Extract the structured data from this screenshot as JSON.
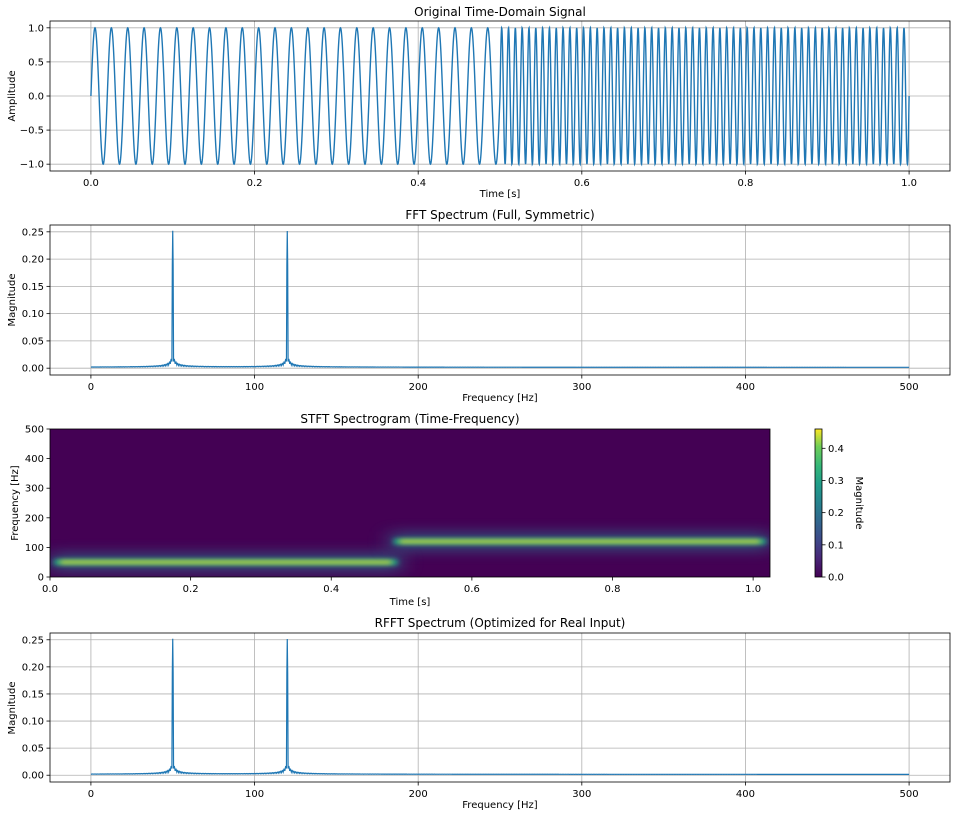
{
  "chart_data": [
    {
      "type": "line",
      "title": "Original Time-Domain Signal",
      "xlabel": "Time [s]",
      "ylabel": "Amplitude",
      "xlim": [
        -0.05,
        1.05
      ],
      "ylim": [
        -1.1,
        1.1
      ],
      "xticks": [
        "0.0",
        "0.2",
        "0.4",
        "0.6",
        "0.8",
        "1.0"
      ],
      "xtick_values": [
        0,
        0.2,
        0.4,
        0.6,
        0.8,
        1.0
      ],
      "yticks": [
        "1.0",
        "0.5",
        "0.0",
        "−0.5",
        "−1.0"
      ],
      "ytick_values": [
        1,
        0.5,
        0,
        -0.5,
        -1
      ],
      "grid": true,
      "color": "#1f77b4",
      "series": [
        {
          "segments": [
            {
              "t_start": 0,
              "t_end": 0.5,
              "freq_hz": 50,
              "amplitude": 1
            },
            {
              "t_start": 0.5,
              "t_end": 1.0,
              "freq_hz": 120,
              "amplitude": 1
            }
          ]
        }
      ]
    },
    {
      "type": "line",
      "title": "FFT Spectrum (Full, Symmetric)",
      "xlabel": "Frequency [Hz]",
      "ylabel": "Magnitude",
      "xlim": [
        -25,
        525
      ],
      "ylim": [
        -0.0125,
        0.2625
      ],
      "xticks": [
        "0",
        "100",
        "200",
        "300",
        "400",
        "500"
      ],
      "xtick_values": [
        0,
        100,
        200,
        300,
        400,
        500
      ],
      "yticks": [
        "0.25",
        "0.20",
        "0.15",
        "0.10",
        "0.05",
        "0.00"
      ],
      "ytick_values": [
        0.25,
        0.2,
        0.15,
        0.1,
        0.05,
        0
      ],
      "grid": true,
      "color": "#1f77b4",
      "peaks": [
        {
          "freq_hz": 50,
          "magnitude": 0.25
        },
        {
          "freq_hz": 120,
          "magnitude": 0.25
        }
      ],
      "freq_range": [
        0,
        500
      ]
    },
    {
      "type": "heatmap",
      "title": "STFT Spectrogram (Time-Frequency)",
      "xlabel": "Time [s]",
      "ylabel": "Frequency [Hz]",
      "xlim": [
        0,
        1.024
      ],
      "ylim": [
        0,
        500
      ],
      "xticks": [
        "0.0",
        "0.2",
        "0.4",
        "0.6",
        "0.8",
        "1.0"
      ],
      "xtick_values": [
        0,
        0.2,
        0.4,
        0.6,
        0.8,
        1.0
      ],
      "yticks": [
        "500",
        "400",
        "300",
        "200",
        "100",
        "0"
      ],
      "ytick_values": [
        500,
        400,
        300,
        200,
        100,
        0
      ],
      "colormap": "viridis",
      "colorbar_label": "Magnitude",
      "colorbar_range": [
        0,
        0.46
      ],
      "colorbar_ticks": [
        "0.4",
        "0.3",
        "0.2",
        "0.1",
        "0.0"
      ],
      "colorbar_tick_values": [
        0.4,
        0.3,
        0.2,
        0.1,
        0
      ],
      "bands": [
        {
          "t_start": 0,
          "t_end": 0.5,
          "freq_hz": 50,
          "magnitude": 0.45
        },
        {
          "t_start": 0.5,
          "t_end": 1.024,
          "freq_hz": 120,
          "magnitude": 0.45
        }
      ]
    },
    {
      "type": "line",
      "title": "RFFT Spectrum (Optimized for Real Input)",
      "xlabel": "Frequency [Hz]",
      "ylabel": "Magnitude",
      "xlim": [
        -25,
        525
      ],
      "ylim": [
        -0.0125,
        0.2625
      ],
      "xticks": [
        "0",
        "100",
        "200",
        "300",
        "400",
        "500"
      ],
      "xtick_values": [
        0,
        100,
        200,
        300,
        400,
        500
      ],
      "yticks": [
        "0.25",
        "0.20",
        "0.15",
        "0.10",
        "0.05",
        "0.00"
      ],
      "ytick_values": [
        0.25,
        0.2,
        0.15,
        0.1,
        0.05,
        0
      ],
      "grid": true,
      "color": "#1f77b4",
      "peaks": [
        {
          "freq_hz": 50,
          "magnitude": 0.25
        },
        {
          "freq_hz": 120,
          "magnitude": 0.25
        }
      ],
      "freq_range": [
        0,
        500
      ]
    }
  ]
}
